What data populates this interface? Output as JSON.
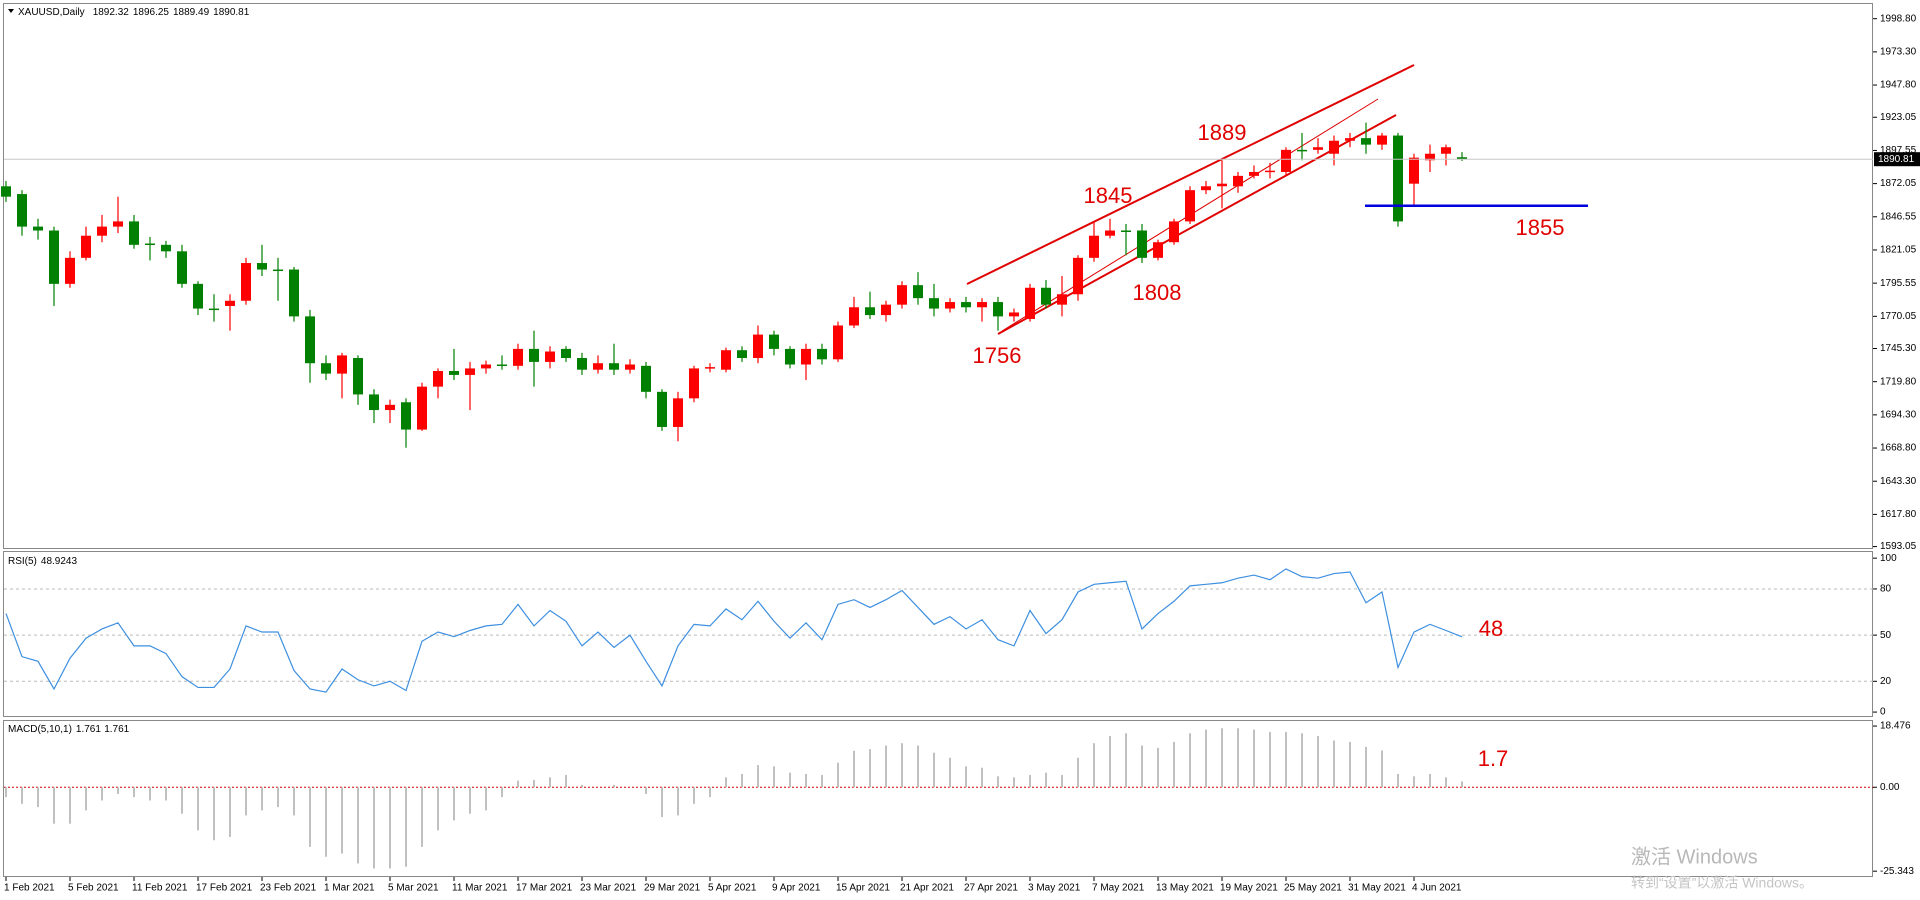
{
  "header": {
    "symbol": "XAUUSD,Daily"
  },
  "watermark": {
    "title": "激活 Windows",
    "subtitle": "转到“设置”以激活 Windows。"
  },
  "chart_data": [
    {
      "type": "candlestick",
      "categories": [
        "1 Feb 2021",
        null,
        null,
        null,
        "5 Feb 2021",
        null,
        null,
        null,
        "11 Feb 2021",
        null,
        null,
        null,
        "17 Feb 2021",
        null,
        null,
        null,
        "23 Feb 2021",
        null,
        null,
        null,
        "1 Mar 2021",
        null,
        null,
        null,
        "5 Mar 2021",
        null,
        null,
        null,
        "11 Mar 2021",
        null,
        null,
        null,
        "17 Mar 2021",
        null,
        null,
        null,
        "23 Mar 2021",
        null,
        null,
        null,
        "29 Mar 2021",
        null,
        null,
        null,
        "5 Apr 2021",
        null,
        null,
        null,
        "9 Apr 2021",
        null,
        null,
        null,
        "15 Apr 2021",
        null,
        null,
        null,
        "21 Apr 2021",
        null,
        null,
        null,
        "27 Apr 2021",
        null,
        null,
        null,
        "3 May 2021",
        null,
        null,
        null,
        "7 May 2021",
        null,
        null,
        null,
        "13 May 2021",
        null,
        null,
        null,
        "19 May 2021",
        null,
        null,
        null,
        "25 May 2021",
        null,
        null,
        null,
        "31 May 2021",
        null,
        null,
        null,
        "4 Jun 2021",
        null,
        null,
        null
      ],
      "open": [
        1870,
        1864,
        1839,
        1836,
        1795,
        1815,
        1832,
        1839,
        1843,
        1826,
        1825,
        1820,
        1795,
        1776,
        1778,
        1782,
        1811,
        1806,
        1806,
        1770,
        1734,
        1726,
        1738,
        1710,
        1698,
        1704,
        1683,
        1716,
        1728,
        1725,
        1730,
        1733,
        1732,
        1745,
        1735,
        1745,
        1738,
        1729,
        1734,
        1729,
        1732,
        1712,
        1685,
        1707,
        1730,
        1729,
        1744,
        1738,
        1756,
        1745,
        1733,
        1745,
        1737,
        1763,
        1777,
        1771,
        1779,
        1794,
        1784,
        1776,
        1781,
        1777,
        1781,
        1770,
        1768,
        1792,
        1779,
        1787,
        1815,
        1832,
        1836,
        1836,
        1815,
        1827,
        1843,
        1867,
        1870,
        1870,
        1878,
        1881,
        1881,
        1898,
        1898,
        1895,
        1905,
        1907,
        1902,
        1909,
        1872,
        1890,
        1895,
        1892.32
      ],
      "high": [
        1874,
        1867,
        1845,
        1839,
        1820,
        1839,
        1848,
        1862,
        1848,
        1831,
        1828,
        1825,
        1797,
        1787,
        1787,
        1815,
        1825,
        1815,
        1808,
        1775,
        1740,
        1742,
        1740,
        1714,
        1706,
        1707,
        1719,
        1730,
        1745,
        1735,
        1736,
        1740,
        1749,
        1759,
        1747,
        1747,
        1742,
        1740,
        1749,
        1737,
        1735,
        1714,
        1712,
        1732,
        1734,
        1746,
        1747,
        1763,
        1759,
        1747,
        1749,
        1749,
        1766,
        1785,
        1789,
        1782,
        1797,
        1804,
        1795,
        1784,
        1785,
        1784,
        1785,
        1776,
        1795,
        1798,
        1801,
        1817,
        1843,
        1845,
        1841,
        1841,
        1829,
        1845,
        1870,
        1874,
        1890,
        1881,
        1886,
        1888,
        1900,
        1911,
        1907,
        1909,
        1911,
        1919,
        1911,
        1911,
        1895,
        1902,
        1902,
        1896.25
      ],
      "low": [
        1858,
        1832,
        1829,
        1778,
        1792,
        1813,
        1827,
        1834,
        1822,
        1813,
        1815,
        1792,
        1771,
        1766,
        1759,
        1779,
        1801,
        1782,
        1766,
        1719,
        1721,
        1707,
        1702,
        1688,
        1688,
        1669,
        1682,
        1707,
        1721,
        1698,
        1726,
        1729,
        1729,
        1716,
        1730,
        1735,
        1725,
        1726,
        1725,
        1726,
        1707,
        1682,
        1674,
        1704,
        1727,
        1727,
        1735,
        1734,
        1740,
        1730,
        1721,
        1733,
        1735,
        1761,
        1768,
        1766,
        1776,
        1779,
        1770,
        1773,
        1773,
        1766,
        1759,
        1766,
        1766,
        1776,
        1770,
        1782,
        1812,
        1830,
        1817,
        1811,
        1813,
        1825,
        1841,
        1864,
        1853,
        1865,
        1876,
        1876,
        1878,
        1890,
        1895,
        1886,
        1900,
        1895,
        1898,
        1839,
        1855,
        1881,
        1886,
        1889.49
      ],
      "close": [
        1862,
        1839,
        1836,
        1795,
        1815,
        1832,
        1839,
        1843,
        1825,
        1825,
        1820,
        1795,
        1776,
        1775,
        1782,
        1811,
        1806,
        1805,
        1770,
        1734,
        1726,
        1740,
        1710,
        1698,
        1702,
        1683,
        1716,
        1728,
        1725,
        1730,
        1733,
        1732,
        1745,
        1735,
        1743,
        1738,
        1729,
        1734,
        1729,
        1733,
        1712,
        1685,
        1707,
        1730,
        1731,
        1744,
        1738,
        1756,
        1745,
        1733,
        1745,
        1737,
        1763,
        1777,
        1771,
        1779,
        1794,
        1784,
        1776,
        1781,
        1777,
        1781,
        1770,
        1773,
        1792,
        1779,
        1787,
        1815,
        1832,
        1836,
        1835,
        1815,
        1827,
        1843,
        1867,
        1870,
        1872,
        1878,
        1881,
        1882,
        1898,
        1897,
        1900,
        1905,
        1907,
        1902,
        1909,
        1843,
        1892,
        1895,
        1900,
        1890.81
      ],
      "up_color": "#ff0000",
      "down_color": "#008000",
      "ylim": [
        1591.2,
        2010.1
      ],
      "yticks": [
        {
          "value": 1998.8,
          "label": "1998.80"
        },
        {
          "value": 1973.3,
          "label": "1973.30"
        },
        {
          "value": 1947.8,
          "label": "1947.80"
        },
        1923.05,
        1897.55,
        {
          "value": 1872.05,
          "label": "1872.05"
        },
        {
          "value": 1846.55,
          "label": "1846.55"
        },
        {
          "value": 1821.05,
          "label": "1821.05"
        },
        {
          "value": 1795.55,
          "label": "1795.55"
        },
        {
          "value": 1770.05,
          "label": "1770.05"
        },
        {
          "value": 1745.3,
          "label": "1745.30"
        },
        {
          "value": 1719.8,
          "label": "1719.80"
        },
        {
          "value": 1694.3,
          "label": "1694.30"
        },
        {
          "value": 1668.8,
          "label": "1668.80"
        },
        {
          "value": 1643.3,
          "label": "1643.30"
        },
        {
          "value": 1617.8,
          "label": "1617.80"
        },
        1593.05
      ],
      "annotations": [
        1889,
        1845,
        1808,
        1756,
        1855
      ],
      "support_color": "#0000dd"
    },
    {
      "type": "line",
      "title": "RSI(5)",
      "color": "#3d8fe0",
      "values": [
        64,
        36,
        33,
        15,
        35,
        48,
        54,
        58,
        43,
        43,
        38,
        23,
        16,
        16,
        28,
        56,
        52,
        52,
        27,
        15,
        13,
        28,
        21,
        17,
        20,
        14,
        46,
        52,
        49,
        53,
        56,
        57,
        70,
        56,
        66,
        59,
        43,
        52,
        42,
        50,
        33,
        17,
        43,
        57,
        56,
        67,
        60,
        72,
        59,
        48,
        58,
        47,
        70,
        73,
        68,
        73,
        79,
        68,
        57,
        62,
        54,
        60,
        47,
        43,
        66,
        51,
        60,
        78,
        83,
        84,
        85,
        54,
        64,
        72,
        82,
        83,
        84,
        87,
        89,
        86,
        93,
        88,
        87,
        90,
        91,
        71,
        78,
        29,
        52,
        57,
        53,
        48.9243
      ],
      "ylim": [
        -3.2,
        104
      ],
      "yticks": [
        100,
        80,
        50,
        20,
        0
      ],
      "levels": [
        80,
        50,
        20
      ],
      "annotation": 48
    },
    {
      "type": "bar",
      "title": "MACD(5,10,1)",
      "color": "#c0c0c0",
      "signal": 1.761,
      "values": [
        -3,
        -5,
        -6,
        -11,
        -11,
        -7,
        -4,
        -2,
        -3,
        -4,
        -4,
        -8,
        -13,
        -16,
        -15,
        -8.5,
        -7,
        -6,
        -8.5,
        -18,
        -21,
        -20,
        -23,
        -24.5,
        -24.5,
        -24,
        -18,
        -13,
        -10,
        -8,
        -7,
        -3,
        2,
        2.2,
        3,
        3.7,
        0.7,
        0,
        0.7,
        0,
        -2,
        -9,
        -8.5,
        -5,
        -3,
        3,
        4,
        6.7,
        6.3,
        4.4,
        4,
        3.7,
        7.4,
        11,
        11.5,
        12.6,
        13.3,
        12.6,
        10.4,
        8.9,
        6.3,
        5.9,
        3.3,
        3,
        3.7,
        4.4,
        3.7,
        8.9,
        13.3,
        15.5,
        16.3,
        12.6,
        11.9,
        13.7,
        16.3,
        17.4,
        17.8,
        17.8,
        17.4,
        16.7,
        16.7,
        16.3,
        15.5,
        14.1,
        13.7,
        12.2,
        11.1,
        4,
        3.3,
        4,
        3,
        1.761
      ],
      "ylim": [
        -27.1,
        20.0
      ],
      "yticks": [
        18.476,
        {
          "value": 0,
          "label": "0.00"
        },
        -25.343
      ],
      "annotation": 1.7
    }
  ]
}
